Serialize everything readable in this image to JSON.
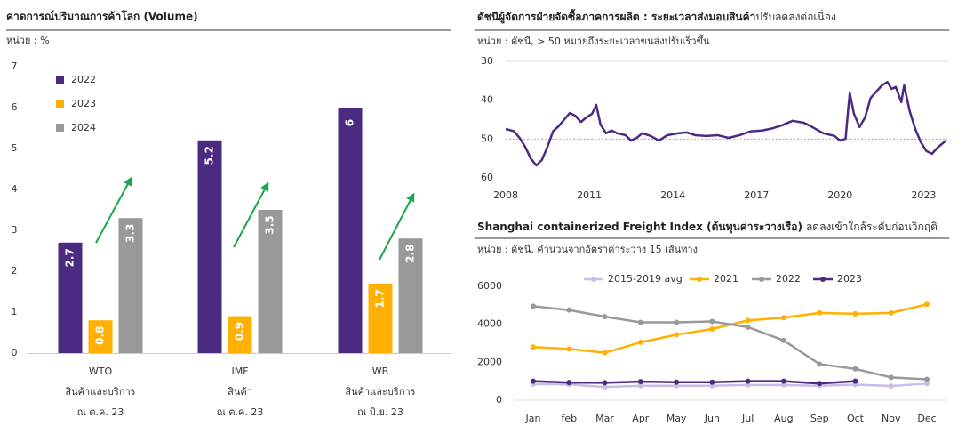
{
  "chart_data": [
    {
      "type": "bar",
      "title": "คาดการณ์ปริมาณการค้าโลก (Volume)",
      "unit_label": "หน่วย : %",
      "categories": [
        [
          "WTO",
          "สินค้าและบริการ",
          "ณ ต.ค. 23"
        ],
        [
          "IMF",
          "สินค้า",
          "ณ ต.ค. 23"
        ],
        [
          "WB",
          "สินค้าและบริการ",
          "ณ มิ.ย. 23"
        ]
      ],
      "series": [
        {
          "name": "2022",
          "color": "#4b2a82",
          "values": [
            2.7,
            5.2,
            6
          ]
        },
        {
          "name": "2023",
          "color": "#ffb000",
          "values": [
            0.8,
            0.9,
            1.7
          ]
        },
        {
          "name": "2024",
          "color": "#999999",
          "values": [
            3.3,
            3.5,
            2.8
          ]
        }
      ],
      "ylim": [
        0,
        7
      ],
      "yticks": [
        0,
        1,
        2,
        3,
        4,
        5,
        6,
        7
      ],
      "grid": false
    },
    {
      "type": "line",
      "title_bold": "ดัชนีผู้จัดการฝ่ายจัดซื้อภาคการผลิต : ระยะเวลาส่งมอบสินค้า",
      "title_rest": "ปรับลดลงต่อเนื่อง",
      "unit_label": "หน่วย : ดัชนี, > 50 หมายถึงระยะเวลาขนส่งปรับเร็วขึ้น",
      "color": "#4b2a82",
      "x": [
        2008.0,
        2008.3,
        2008.5,
        2008.7,
        2008.9,
        2009.1,
        2009.3,
        2009.5,
        2009.7,
        2009.9,
        2010.1,
        2010.3,
        2010.5,
        2010.7,
        2010.9,
        2011.1,
        2011.25,
        2011.4,
        2011.6,
        2011.8,
        2012.0,
        2012.3,
        2012.5,
        2012.7,
        2012.9,
        2013.2,
        2013.5,
        2013.8,
        2014.2,
        2014.5,
        2014.8,
        2015.2,
        2015.6,
        2016.0,
        2016.4,
        2016.8,
        2017.2,
        2017.6,
        2017.9,
        2018.3,
        2018.7,
        2019.0,
        2019.4,
        2019.8,
        2020.0,
        2020.2,
        2020.3,
        2020.35,
        2020.5,
        2020.7,
        2020.9,
        2021.1,
        2021.3,
        2021.5,
        2021.7,
        2021.85,
        2022.0,
        2022.2,
        2022.3,
        2022.5,
        2022.7,
        2022.9,
        2023.1,
        2023.3,
        2023.5,
        2023.8
      ],
      "values": [
        47.4,
        48,
        49.7,
        52,
        55,
        56.8,
        55.4,
        52,
        48,
        46.7,
        45,
        43.3,
        44,
        45.6,
        44.4,
        43.5,
        41.2,
        46.2,
        48.5,
        47.8,
        48.5,
        49,
        50.4,
        49.7,
        48.5,
        49.2,
        50.4,
        49,
        48.5,
        48.3,
        49,
        49.2,
        49,
        49.7,
        49,
        48,
        47.8,
        47.2,
        46.5,
        45.3,
        45.8,
        46.9,
        48.5,
        49.2,
        50.4,
        49.9,
        41.7,
        38.2,
        43.5,
        46.9,
        44.4,
        39.4,
        37.8,
        36.2,
        35.3,
        37.1,
        36.6,
        40.5,
        36.2,
        42.8,
        47.4,
        50.8,
        53.1,
        53.8,
        52.2,
        50.4
      ],
      "xlim": [
        2008,
        2023.85
      ],
      "xticks": [
        2008,
        2011,
        2014,
        2017,
        2020,
        2023
      ],
      "ylim": [
        60,
        30
      ],
      "yticks": [
        30,
        40,
        50,
        60
      ],
      "reference_line": 50,
      "grid": false
    },
    {
      "type": "line",
      "title_bold": "Shanghai containerized Freight Index (ต้นทุนค่าระวางเรือ)",
      "title_rest": "ลดลงเข้าใกล้ระดับก่อนวิกฤติ",
      "unit_label": "หน่วย : ดัชนี, คำนวนจากอัตราค่าระวาง 15 เส้นทาง",
      "categories": [
        "Jan",
        "feb",
        "Mar",
        "Apr",
        "May",
        "Jun",
        "Jul",
        "Aug",
        "Sep",
        "Oct",
        "Nov",
        "Dec"
      ],
      "series": [
        {
          "name": "2015-2019 avg",
          "color": "#cbbde6",
          "values": [
            850,
            830,
            700,
            760,
            760,
            760,
            800,
            800,
            760,
            820,
            750,
            870
          ]
        },
        {
          "name": "2021",
          "color": "#ffb000",
          "values": [
            2800,
            2700,
            2500,
            3050,
            3450,
            3750,
            4200,
            4350,
            4600,
            4550,
            4600,
            5050
          ]
        },
        {
          "name": "2022",
          "color": "#999999",
          "values": [
            4950,
            4750,
            4400,
            4100,
            4100,
            4150,
            3850,
            3150,
            1900,
            1650,
            1200,
            1100
          ]
        },
        {
          "name": "2023",
          "color": "#4b2a82",
          "values": [
            1000,
            930,
            920,
            980,
            950,
            950,
            1000,
            1000,
            880,
            1000,
            null,
            null
          ]
        }
      ],
      "ylim": [
        0,
        6000
      ],
      "yticks": [
        0,
        2000,
        4000,
        6000
      ],
      "grid": false
    }
  ]
}
